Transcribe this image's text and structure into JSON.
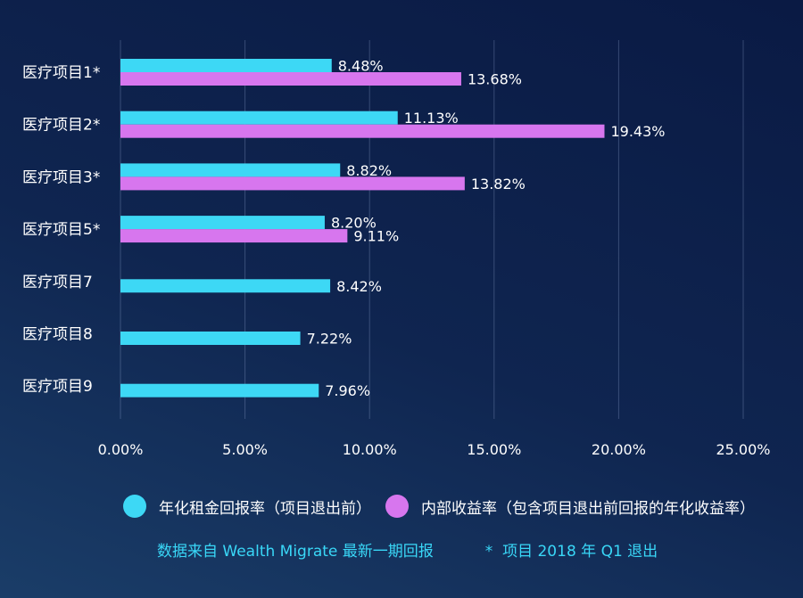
{
  "chart_data": {
    "type": "bar",
    "orientation": "horizontal",
    "categories": [
      "医疗项目1*",
      "医疗项目2*",
      "医疗项目3*",
      "医疗项目5*",
      "医疗项目7",
      "医疗项目8",
      "医疗项目9"
    ],
    "series": [
      {
        "name": "年化租金回报率（项目退出前）",
        "color": "#3dd8f5",
        "values": [
          8.48,
          11.13,
          8.82,
          8.2,
          8.42,
          7.22,
          7.96
        ],
        "labels": [
          "8.48%",
          "11.13%",
          "8.82%",
          "8.20%",
          "8.42%",
          "7.22%",
          "7.96%"
        ]
      },
      {
        "name": "内部收益率（包含项目退出前回报的年化收益率）",
        "color": "#d776ee",
        "values": [
          13.68,
          19.43,
          13.82,
          9.11,
          null,
          null,
          null
        ],
        "labels": [
          "13.68%",
          "19.43%",
          "13.82%",
          "9.11%",
          null,
          null,
          null
        ]
      }
    ],
    "x_ticks": [
      "0.00%",
      "5.00%",
      "10.00%",
      "15.00%",
      "20.00%",
      "25.00%"
    ],
    "xlim": [
      0,
      25
    ],
    "grid": true,
    "legend": "bottom"
  },
  "footer": {
    "source": "数据来自 Wealth Migrate 最新一期回报",
    "note": "*  项目 2018 年 Q1 退出"
  }
}
